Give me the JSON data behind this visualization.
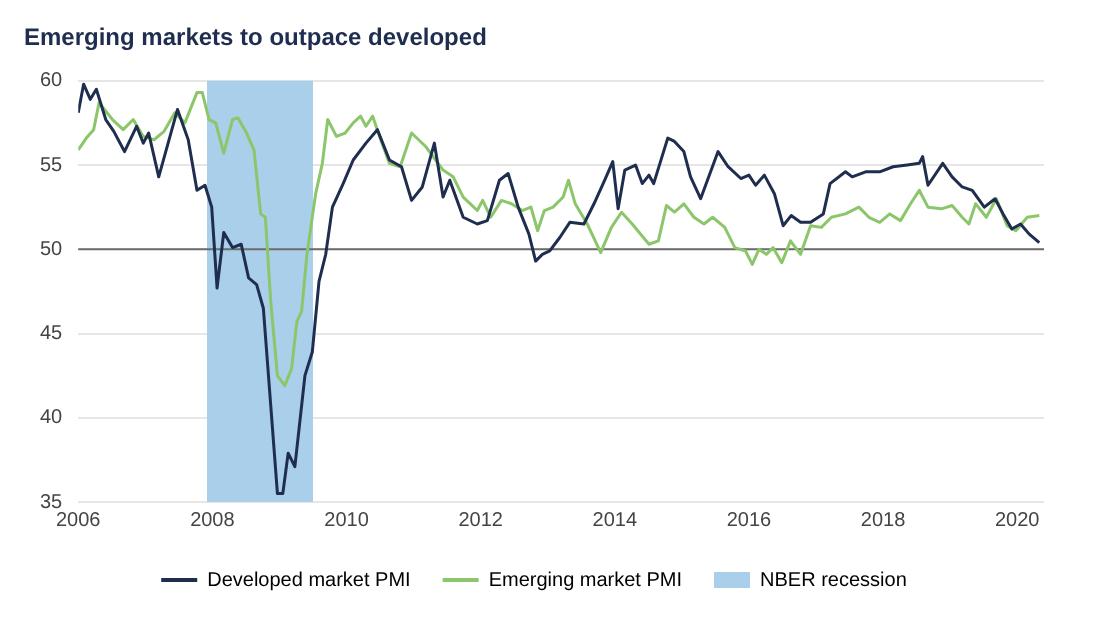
{
  "chart_data": {
    "type": "line",
    "title": "Emerging markets to outpace developed",
    "xlim": [
      2006,
      2020.4
    ],
    "xticks": [
      2006,
      2008,
      2010,
      2012,
      2014,
      2016,
      2018,
      2020
    ],
    "ylim": [
      35,
      60
    ],
    "yticks": [
      35,
      40,
      45,
      50,
      55,
      60
    ],
    "grid": "y",
    "legend": "bottom",
    "marker": "none",
    "line_style": "solid",
    "ref_lines": [
      {
        "axis": "y",
        "value": 50,
        "color": "#6b6b6b"
      }
    ],
    "bands": [
      {
        "axis": "x",
        "from": 2007.92,
        "to": 2009.5,
        "label": "NBER recession",
        "color": "#a9cfea"
      }
    ],
    "series": [
      {
        "name": "Developed market PMI",
        "color": "#1f2d4f",
        "x": [
          2006.0,
          2006.08,
          2006.18,
          2006.27,
          2006.41,
          2006.53,
          2006.69,
          2006.87,
          2006.97,
          2007.05,
          2007.2,
          2007.48,
          2007.64,
          2007.77,
          2007.89,
          2007.99,
          2008.07,
          2008.17,
          2008.3,
          2008.43,
          2008.54,
          2008.66,
          2008.76,
          2008.97,
          2009.05,
          2009.13,
          2009.23,
          2009.38,
          2009.49,
          2009.59,
          2009.69,
          2009.79,
          2009.95,
          2010.1,
          2010.29,
          2010.46,
          2010.64,
          2010.82,
          2010.97,
          2011.13,
          2011.31,
          2011.44,
          2011.54,
          2011.74,
          2011.95,
          2012.1,
          2012.28,
          2012.41,
          2012.56,
          2012.72,
          2012.82,
          2012.92,
          2013.03,
          2013.18,
          2013.33,
          2013.54,
          2013.69,
          2013.85,
          2013.97,
          2014.05,
          2014.15,
          2014.31,
          2014.41,
          2014.51,
          2014.58,
          2014.79,
          2014.89,
          2015.03,
          2015.13,
          2015.28,
          2015.54,
          2015.69,
          2015.88,
          2016.0,
          2016.1,
          2016.23,
          2016.38,
          2016.51,
          2016.63,
          2016.77,
          2016.92,
          2017.11,
          2017.21,
          2017.44,
          2017.54,
          2017.74,
          2017.95,
          2018.15,
          2018.36,
          2018.54,
          2018.59,
          2018.67,
          2018.89,
          2019.03,
          2019.18,
          2019.33,
          2019.51,
          2019.67,
          2019.79,
          2019.92,
          2020.05,
          2020.18,
          2020.33
        ],
        "values": [
          58.1,
          59.8,
          58.9,
          59.5,
          57.7,
          57.0,
          55.8,
          57.3,
          56.3,
          56.9,
          54.3,
          58.3,
          56.5,
          53.5,
          53.8,
          52.5,
          47.7,
          51.0,
          50.1,
          50.3,
          48.3,
          47.9,
          46.5,
          35.5,
          35.5,
          37.9,
          37.1,
          42.5,
          43.9,
          48.1,
          49.7,
          52.5,
          53.9,
          55.3,
          56.3,
          57.1,
          55.3,
          54.9,
          52.9,
          53.7,
          56.3,
          53.1,
          54.1,
          51.9,
          51.5,
          51.7,
          54.1,
          54.5,
          52.5,
          50.9,
          49.3,
          49.7,
          49.9,
          50.7,
          51.6,
          51.5,
          52.7,
          54.1,
          55.2,
          52.4,
          54.7,
          55.0,
          53.9,
          54.4,
          53.9,
          56.6,
          56.4,
          55.8,
          54.3,
          53.0,
          55.8,
          54.9,
          54.2,
          54.4,
          53.8,
          54.4,
          53.3,
          51.4,
          52.0,
          51.6,
          51.6,
          52.1,
          53.9,
          54.6,
          54.3,
          54.6,
          54.6,
          54.9,
          55.0,
          55.1,
          55.5,
          53.8,
          55.1,
          54.3,
          53.7,
          53.5,
          52.5,
          53.0,
          52.1,
          51.2,
          51.5,
          50.9,
          50.4
        ]
      },
      {
        "name": "Emerging market PMI",
        "color": "#8cc66a",
        "x": [
          2006.0,
          2006.12,
          2006.23,
          2006.31,
          2006.51,
          2006.67,
          2006.82,
          2006.97,
          2007.13,
          2007.28,
          2007.44,
          2007.59,
          2007.77,
          2007.85,
          2007.95,
          2008.05,
          2008.17,
          2008.3,
          2008.38,
          2008.51,
          2008.62,
          2008.72,
          2008.79,
          2008.87,
          2008.97,
          2009.08,
          2009.18,
          2009.26,
          2009.33,
          2009.41,
          2009.54,
          2009.64,
          2009.72,
          2009.85,
          2009.98,
          2010.1,
          2010.21,
          2010.29,
          2010.39,
          2010.51,
          2010.64,
          2010.8,
          2010.97,
          2011.18,
          2011.44,
          2011.59,
          2011.74,
          2011.95,
          2012.03,
          2012.15,
          2012.31,
          2012.46,
          2012.62,
          2012.75,
          2012.85,
          2012.95,
          2013.08,
          2013.23,
          2013.31,
          2013.41,
          2013.59,
          2013.79,
          2013.95,
          2014.1,
          2014.26,
          2014.51,
          2014.65,
          2014.77,
          2014.89,
          2015.03,
          2015.18,
          2015.33,
          2015.46,
          2015.64,
          2015.79,
          2015.95,
          2016.05,
          2016.15,
          2016.26,
          2016.36,
          2016.49,
          2016.62,
          2016.77,
          2016.92,
          2017.08,
          2017.23,
          2017.44,
          2017.64,
          2017.79,
          2017.95,
          2018.1,
          2018.26,
          2018.41,
          2018.54,
          2018.67,
          2018.87,
          2019.03,
          2019.18,
          2019.28,
          2019.38,
          2019.54,
          2019.69,
          2019.85,
          2019.98,
          2020.15,
          2020.33
        ],
        "values": [
          55.9,
          56.6,
          57.1,
          58.7,
          57.7,
          57.1,
          57.7,
          56.7,
          56.5,
          57.0,
          58.1,
          57.5,
          59.3,
          59.3,
          57.7,
          57.5,
          55.7,
          57.7,
          57.8,
          56.9,
          55.9,
          52.1,
          51.9,
          46.9,
          42.5,
          41.9,
          42.9,
          45.7,
          46.3,
          49.7,
          53.3,
          55.1,
          57.7,
          56.7,
          56.9,
          57.5,
          57.9,
          57.3,
          57.9,
          56.5,
          55.1,
          54.9,
          56.9,
          56.1,
          54.7,
          54.3,
          53.1,
          52.3,
          52.9,
          51.9,
          52.9,
          52.7,
          52.3,
          52.5,
          51.1,
          52.3,
          52.5,
          53.1,
          54.1,
          52.7,
          51.5,
          49.8,
          51.3,
          52.2,
          51.5,
          50.3,
          50.5,
          52.6,
          52.2,
          52.7,
          51.9,
          51.5,
          51.9,
          51.3,
          50.1,
          49.9,
          49.1,
          50.0,
          49.7,
          50.1,
          49.2,
          50.5,
          49.7,
          51.4,
          51.3,
          51.9,
          52.1,
          52.5,
          51.9,
          51.6,
          52.1,
          51.7,
          52.7,
          53.5,
          52.5,
          52.4,
          52.6,
          51.9,
          51.5,
          52.7,
          51.9,
          53.0,
          51.4,
          51.1,
          51.9,
          52.0
        ]
      }
    ]
  }
}
